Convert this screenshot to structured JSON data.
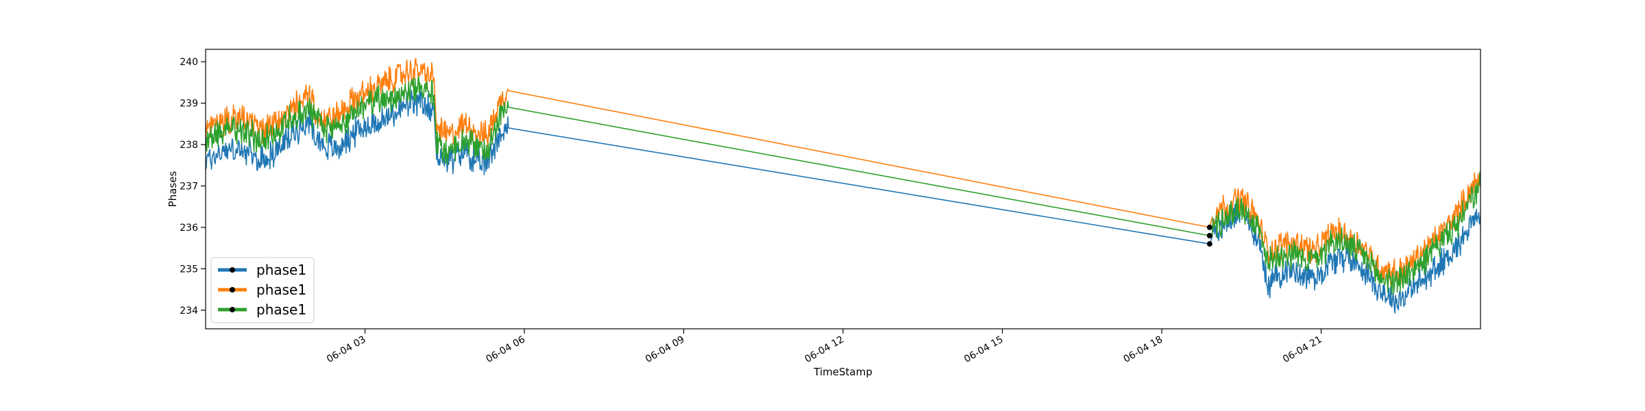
{
  "chart_data": {
    "type": "line",
    "title": "",
    "xlabel": "TimeStamp",
    "ylabel": "Phases",
    "xlim": [
      "06-04 00:00",
      "06-04 24:00"
    ],
    "ylim": [
      233.55,
      240.3
    ],
    "x_tick_labels": [
      "06-04 03",
      "06-04 06",
      "06-04 09",
      "06-04 12",
      "06-04 15",
      "06-04 18",
      "06-04 21"
    ],
    "x_tick_hours": [
      3,
      6,
      9,
      12,
      15,
      18,
      21
    ],
    "y_tick_labels": [
      "234",
      "235",
      "236",
      "237",
      "238",
      "239",
      "240"
    ],
    "y_ticks": [
      234,
      235,
      236,
      237,
      238,
      239,
      240
    ],
    "grid": false,
    "legend_position": "lower-left",
    "legend_entries": [
      "phase1",
      "phase1",
      "phase1"
    ],
    "series": [
      {
        "name": "phase1",
        "color": "#1f77b4",
        "x_hours": [
          0.0,
          0.4,
          0.8,
          1.0,
          1.3,
          1.6,
          1.9,
          2.2,
          2.5,
          2.8,
          3.1,
          3.4,
          3.7,
          4.0,
          4.3,
          4.35,
          4.6,
          4.9,
          5.1,
          5.3,
          5.5,
          5.7,
          18.9,
          18.95,
          19.2,
          19.5,
          19.8,
          20.0,
          20.3,
          20.6,
          20.9,
          21.2,
          21.5,
          21.8,
          22.1,
          22.4,
          22.7,
          23.0,
          23.3,
          23.6,
          23.8,
          24.0
        ],
        "values": [
          237.6,
          237.9,
          237.8,
          237.6,
          237.8,
          238.2,
          238.6,
          238.0,
          237.9,
          238.3,
          238.5,
          238.6,
          238.9,
          239.0,
          238.8,
          237.8,
          237.6,
          237.9,
          237.5,
          237.6,
          238.2,
          238.4,
          235.6,
          235.9,
          236.1,
          236.4,
          235.8,
          234.6,
          235.0,
          234.9,
          234.8,
          235.2,
          235.3,
          235.0,
          234.5,
          234.2,
          234.5,
          234.8,
          235.2,
          235.6,
          236.1,
          236.3
        ]
      },
      {
        "name": "phase1",
        "color": "#ff7f0e",
        "x_hours": [
          0.0,
          0.4,
          0.8,
          1.0,
          1.3,
          1.6,
          1.9,
          2.2,
          2.5,
          2.8,
          3.1,
          3.4,
          3.7,
          4.0,
          4.3,
          4.35,
          4.6,
          4.9,
          5.1,
          5.3,
          5.5,
          5.7,
          18.9,
          18.95,
          19.2,
          19.5,
          19.8,
          20.0,
          20.3,
          20.6,
          20.9,
          21.2,
          21.5,
          21.8,
          22.1,
          22.4,
          22.7,
          23.0,
          23.3,
          23.6,
          23.8,
          24.0
        ],
        "values": [
          238.3,
          238.6,
          238.6,
          238.3,
          238.5,
          238.8,
          239.2,
          238.6,
          238.7,
          239.1,
          239.3,
          239.5,
          239.7,
          239.8,
          239.6,
          238.4,
          238.2,
          238.5,
          238.3,
          238.2,
          238.9,
          239.3,
          236.0,
          236.3,
          236.5,
          236.7,
          236.2,
          235.4,
          235.6,
          235.6,
          235.4,
          235.9,
          235.8,
          235.5,
          235.0,
          234.9,
          235.1,
          235.5,
          235.9,
          236.4,
          236.9,
          237.2
        ]
      },
      {
        "name": "phase1",
        "color": "#2ca02c",
        "x_hours": [
          0.0,
          0.4,
          0.8,
          1.0,
          1.3,
          1.6,
          1.9,
          2.2,
          2.5,
          2.8,
          3.1,
          3.4,
          3.7,
          4.0,
          4.3,
          4.35,
          4.6,
          4.9,
          5.1,
          5.3,
          5.5,
          5.7,
          18.9,
          18.95,
          19.2,
          19.5,
          19.8,
          20.0,
          20.3,
          20.6,
          20.9,
          21.2,
          21.5,
          21.8,
          22.1,
          22.4,
          22.7,
          23.0,
          23.3,
          23.6,
          23.8,
          24.0
        ],
        "values": [
          238.1,
          238.4,
          238.3,
          238.1,
          238.3,
          238.6,
          238.9,
          238.4,
          238.4,
          238.8,
          239.0,
          239.1,
          239.3,
          239.4,
          239.2,
          238.0,
          237.8,
          238.1,
          237.9,
          237.9,
          238.6,
          238.9,
          235.8,
          236.0,
          236.2,
          236.5,
          236.0,
          235.2,
          235.4,
          235.3,
          235.2,
          235.7,
          235.6,
          235.3,
          234.8,
          234.7,
          234.9,
          235.3,
          235.7,
          236.1,
          236.6,
          237.0
        ]
      }
    ]
  }
}
